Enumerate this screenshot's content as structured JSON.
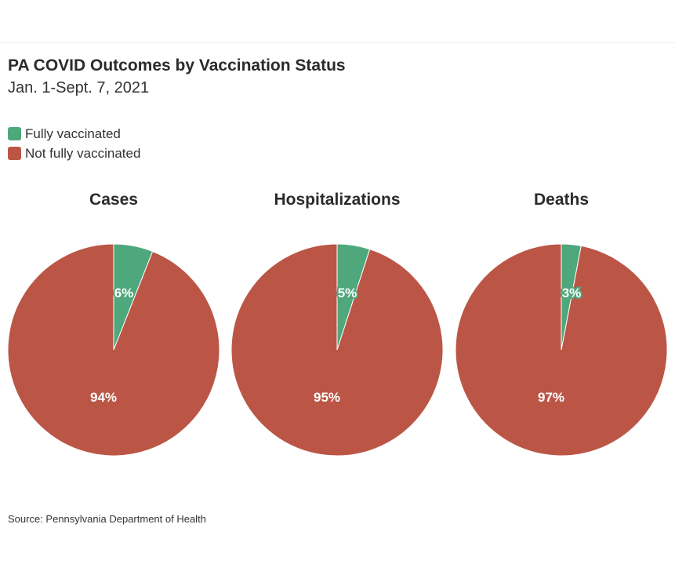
{
  "title": "PA COVID Outcomes by Vaccination Status",
  "subtitle": "Jan. 1-Sept. 7, 2021",
  "source": "Source: Pennsylvania Department of Health",
  "colors": {
    "fully": "#4fa77c",
    "not_fully": "#bb5646"
  },
  "legend": [
    {
      "label": "Fully vaccinated",
      "color": "#4fa77c"
    },
    {
      "label": "Not fully vaccinated",
      "color": "#bb5646"
    }
  ],
  "chart_data": [
    {
      "type": "pie",
      "title": "Cases",
      "slices": [
        {
          "label": "Fully vaccinated",
          "value": 6,
          "display": "6%"
        },
        {
          "label": "Not fully vaccinated",
          "value": 94,
          "display": "94%"
        }
      ]
    },
    {
      "type": "pie",
      "title": "Hospitalizations",
      "slices": [
        {
          "label": "Fully vaccinated",
          "value": 5,
          "display": "5%"
        },
        {
          "label": "Not fully vaccinated",
          "value": 95,
          "display": "95%"
        }
      ]
    },
    {
      "type": "pie",
      "title": "Deaths",
      "slices": [
        {
          "label": "Fully vaccinated",
          "value": 3,
          "display": "3%"
        },
        {
          "label": "Not fully vaccinated",
          "value": 97,
          "display": "97%"
        }
      ]
    }
  ]
}
